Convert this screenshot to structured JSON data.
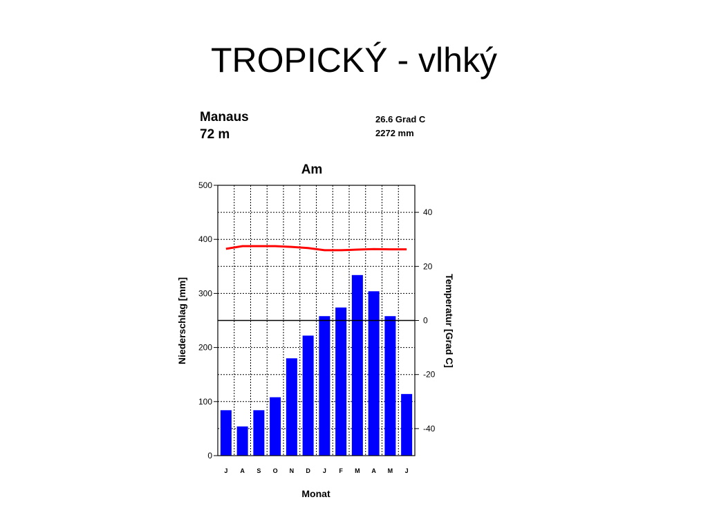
{
  "slide": {
    "title": "TROPICKÝ - vlhký"
  },
  "chart_data": {
    "type": "bar",
    "station": "Manaus",
    "elevation": "72 m",
    "mean_temperature": "26.6 Grad C",
    "annual_precipitation": "2272 mm",
    "title": "Am",
    "xlabel": "Monat",
    "ylabel": "Niederschlag [mm]",
    "y2label": "Temperatur [Grad C]",
    "categories": [
      "J",
      "A",
      "S",
      "O",
      "N",
      "D",
      "J",
      "F",
      "M",
      "A",
      "M",
      "J"
    ],
    "ylim": [
      0,
      500
    ],
    "y2lim": [
      -50,
      50
    ],
    "y_ticks": [
      "0",
      "100",
      "200",
      "300",
      "400",
      "500"
    ],
    "y2_ticks": [
      "-40",
      "-20",
      "0",
      "20",
      "40"
    ],
    "grid": true,
    "series": [
      {
        "kind": "bar",
        "axis": "left",
        "color": "#0000ff",
        "values": [
          84,
          54,
          84,
          108,
          180,
          222,
          258,
          274,
          334,
          304,
          258,
          114
        ]
      },
      {
        "kind": "line",
        "axis": "right",
        "color": "#ff0000",
        "values": [
          26.5,
          27.5,
          27.5,
          27.5,
          27.2,
          26.8,
          26,
          26,
          26.2,
          26.4,
          26.3,
          26.3
        ]
      }
    ]
  }
}
